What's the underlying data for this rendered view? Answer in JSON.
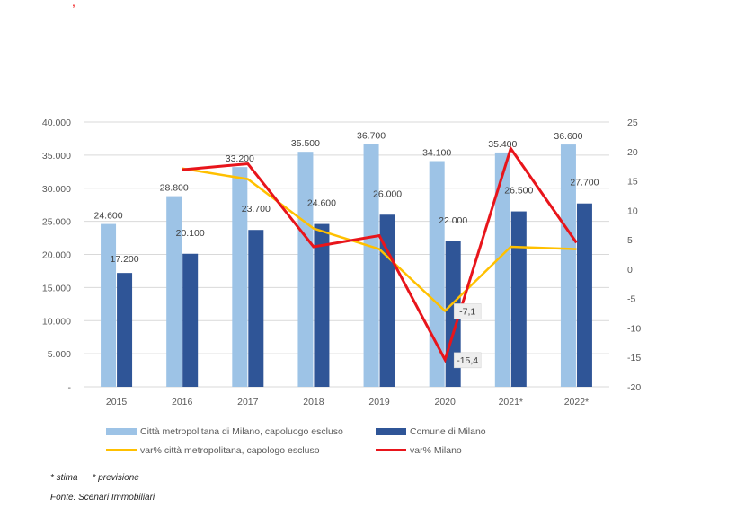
{
  "chart_data": {
    "type": "bar",
    "categories": [
      "2015",
      "2016",
      "2017",
      "2018",
      "2019",
      "2020",
      "2021*",
      "2022*"
    ],
    "series": [
      {
        "name": "Città metropolitana di Milano, capoluogo escluso",
        "type": "bar",
        "axis": "left",
        "color": "#9dc3e6",
        "values": [
          24600,
          28800,
          33200,
          35500,
          36700,
          34100,
          35400,
          36600
        ],
        "labels": [
          "24.600",
          "28.800",
          "33.200",
          "35.500",
          "36.700",
          "34.100",
          "35.400",
          "36.600"
        ]
      },
      {
        "name": "Comune di Milano",
        "type": "bar",
        "axis": "left",
        "color": "#2f5597",
        "values": [
          17200,
          20100,
          23700,
          24600,
          26000,
          22000,
          26500,
          27700
        ],
        "labels": [
          "17.200",
          "20.100",
          "23.700",
          "24.600",
          "26.000",
          "22.000",
          "26.500",
          "27.700"
        ]
      },
      {
        "name": "var% città metropolitana, capologo escluso",
        "type": "line",
        "axis": "right",
        "color": "#ffc000",
        "values": [
          null,
          17.1,
          15.3,
          6.9,
          3.4,
          -7.1,
          3.8,
          3.4
        ]
      },
      {
        "name": "var% Milano",
        "type": "line",
        "axis": "right",
        "color": "#e8151b",
        "values": [
          null,
          16.9,
          17.9,
          3.8,
          5.7,
          -15.4,
          20.5,
          4.5
        ]
      }
    ],
    "annotations": [
      {
        "series": 2,
        "index": 5,
        "text": "-7,1"
      },
      {
        "series": 3,
        "index": 5,
        "text": "-15,4"
      }
    ],
    "yaxis_left": {
      "ylim": [
        0,
        40000
      ],
      "ticks": [
        0,
        5000,
        10000,
        15000,
        20000,
        25000,
        30000,
        35000,
        40000
      ],
      "tick_labels": [
        "-",
        "5.000",
        "10.000",
        "15.000",
        "20.000",
        "25.000",
        "30.000",
        "35.000",
        "40.000"
      ]
    },
    "yaxis_right": {
      "ylim": [
        -20,
        25
      ],
      "ticks": [
        -20,
        -15,
        -10,
        -5,
        0,
        5,
        10,
        15,
        20,
        25
      ],
      "tick_labels": [
        "-20",
        "-15",
        "-10",
        "-5",
        "0",
        "5",
        "10",
        "15",
        "20",
        "25"
      ]
    },
    "grid": true,
    "legend_position": "bottom"
  },
  "footnote": {
    "stima": "* stima",
    "previsione": "* previsione",
    "source": "Fonte: Scenari Immobiliari"
  },
  "top_mark": ","
}
